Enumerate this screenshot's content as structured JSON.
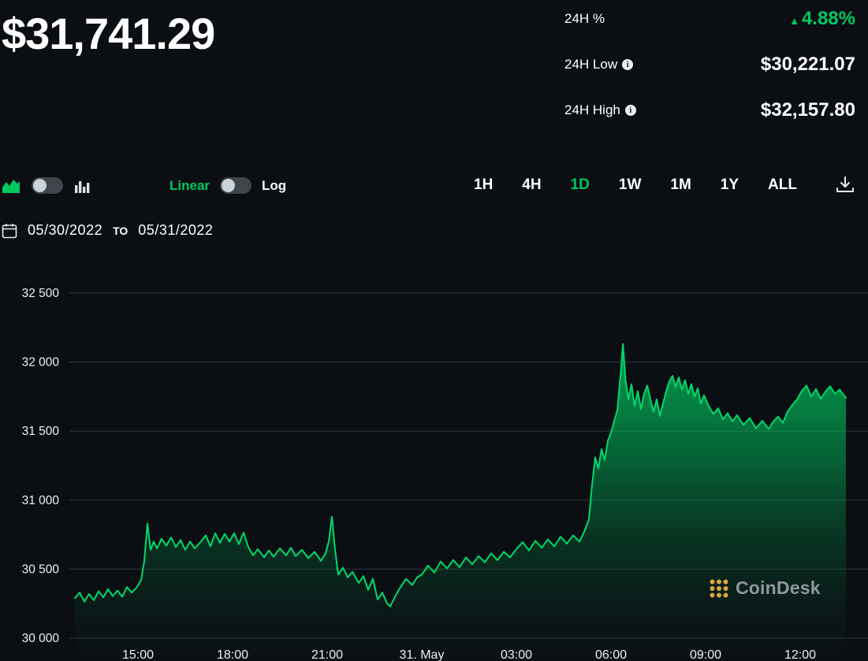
{
  "colors": {
    "background": "#0B0F14",
    "accent_green": "#00C85F",
    "line_green": "#00D96A",
    "gridline": "#32373d",
    "watermark_gold": "#DFA83D",
    "watermark_gray": "#8f969c"
  },
  "icons": {
    "up_triangle": "▲",
    "info": "i",
    "area_chart": "area-chart-icon",
    "bar_chart": "bar-chart-icon",
    "download": "download-icon",
    "calendar": "calendar-icon"
  },
  "header": {
    "price": "$31,741.29",
    "stats": [
      {
        "label": "24H %",
        "value": "4.88%",
        "direction": "up"
      },
      {
        "label": "24H Low",
        "value": "$30,221.07",
        "has_info": true
      },
      {
        "label": "24H High",
        "value": "$32,157.80",
        "has_info": true
      }
    ]
  },
  "scale": {
    "linear": "Linear",
    "log": "Log",
    "selected": "Linear"
  },
  "ranges": {
    "options": [
      "1H",
      "4H",
      "1D",
      "1W",
      "1M",
      "1Y",
      "ALL"
    ],
    "selected": "1D"
  },
  "date_range": {
    "from": "05/30/2022",
    "separator": "TO",
    "to": "05/31/2022"
  },
  "watermark": {
    "text": "CoinDesk"
  },
  "chart_data": {
    "type": "area",
    "title": "",
    "xlabel": "",
    "ylabel": "",
    "legend": "none",
    "grid": "horizontal",
    "t_unit": "hours since 2022-05-30 00:00 (dates from visible date range)",
    "x_range_hours": [
      13.0,
      38.15
    ],
    "y_range": [
      30000,
      32500
    ],
    "x_ticks": [
      {
        "t": 15,
        "label": "15:00"
      },
      {
        "t": 18,
        "label": "18:00"
      },
      {
        "t": 21,
        "label": "21:00"
      },
      {
        "t": 24,
        "label": "31. May"
      },
      {
        "t": 27,
        "label": "03:00"
      },
      {
        "t": 30,
        "label": "06:00"
      },
      {
        "t": 33,
        "label": "09:00"
      },
      {
        "t": 36,
        "label": "12:00"
      }
    ],
    "y_ticks": [
      {
        "v": 32500,
        "label": "32 500"
      },
      {
        "v": 32000,
        "label": "32 000"
      },
      {
        "v": 31500,
        "label": "31 500"
      },
      {
        "v": 31000,
        "label": "31 000"
      },
      {
        "v": 30500,
        "label": "30 500"
      },
      {
        "v": 30000,
        "label": "30 000"
      }
    ],
    "points": [
      [
        13.0,
        30290
      ],
      [
        13.15,
        30330
      ],
      [
        13.3,
        30265
      ],
      [
        13.45,
        30320
      ],
      [
        13.6,
        30275
      ],
      [
        13.75,
        30340
      ],
      [
        13.9,
        30295
      ],
      [
        14.05,
        30355
      ],
      [
        14.2,
        30305
      ],
      [
        14.35,
        30345
      ],
      [
        14.5,
        30300
      ],
      [
        14.65,
        30370
      ],
      [
        14.8,
        30330
      ],
      [
        14.95,
        30365
      ],
      [
        15.1,
        30420
      ],
      [
        15.2,
        30560
      ],
      [
        15.3,
        30830
      ],
      [
        15.4,
        30640
      ],
      [
        15.5,
        30700
      ],
      [
        15.6,
        30650
      ],
      [
        15.75,
        30720
      ],
      [
        15.9,
        30670
      ],
      [
        16.05,
        30730
      ],
      [
        16.2,
        30660
      ],
      [
        16.35,
        30710
      ],
      [
        16.5,
        30640
      ],
      [
        16.65,
        30700
      ],
      [
        16.8,
        30650
      ],
      [
        17.0,
        30700
      ],
      [
        17.15,
        30745
      ],
      [
        17.3,
        30665
      ],
      [
        17.45,
        30760
      ],
      [
        17.6,
        30690
      ],
      [
        17.75,
        30755
      ],
      [
        17.9,
        30700
      ],
      [
        18.05,
        30760
      ],
      [
        18.2,
        30680
      ],
      [
        18.35,
        30765
      ],
      [
        18.5,
        30660
      ],
      [
        18.65,
        30600
      ],
      [
        18.8,
        30645
      ],
      [
        19.0,
        30585
      ],
      [
        19.15,
        30635
      ],
      [
        19.3,
        30590
      ],
      [
        19.5,
        30650
      ],
      [
        19.7,
        30600
      ],
      [
        19.85,
        30655
      ],
      [
        20.0,
        30595
      ],
      [
        20.2,
        30640
      ],
      [
        20.4,
        30580
      ],
      [
        20.6,
        30625
      ],
      [
        20.8,
        30560
      ],
      [
        20.95,
        30615
      ],
      [
        21.05,
        30700
      ],
      [
        21.15,
        30880
      ],
      [
        21.25,
        30640
      ],
      [
        21.35,
        30460
      ],
      [
        21.5,
        30510
      ],
      [
        21.65,
        30440
      ],
      [
        21.8,
        30480
      ],
      [
        22.0,
        30400
      ],
      [
        22.15,
        30450
      ],
      [
        22.3,
        30350
      ],
      [
        22.45,
        30430
      ],
      [
        22.6,
        30280
      ],
      [
        22.75,
        30330
      ],
      [
        22.9,
        30250
      ],
      [
        23.0,
        30230
      ],
      [
        23.15,
        30300
      ],
      [
        23.3,
        30360
      ],
      [
        23.5,
        30430
      ],
      [
        23.7,
        30385
      ],
      [
        23.85,
        30440
      ],
      [
        24.0,
        30460
      ],
      [
        24.2,
        30525
      ],
      [
        24.4,
        30475
      ],
      [
        24.6,
        30555
      ],
      [
        24.8,
        30505
      ],
      [
        25.0,
        30565
      ],
      [
        25.2,
        30515
      ],
      [
        25.4,
        30585
      ],
      [
        25.6,
        30535
      ],
      [
        25.8,
        30595
      ],
      [
        26.0,
        30550
      ],
      [
        26.2,
        30615
      ],
      [
        26.4,
        30565
      ],
      [
        26.6,
        30625
      ],
      [
        26.8,
        30585
      ],
      [
        27.0,
        30645
      ],
      [
        27.2,
        30695
      ],
      [
        27.4,
        30635
      ],
      [
        27.6,
        30705
      ],
      [
        27.8,
        30655
      ],
      [
        28.0,
        30715
      ],
      [
        28.2,
        30665
      ],
      [
        28.4,
        30735
      ],
      [
        28.6,
        30685
      ],
      [
        28.8,
        30745
      ],
      [
        29.0,
        30700
      ],
      [
        29.15,
        30770
      ],
      [
        29.3,
        30860
      ],
      [
        29.4,
        31110
      ],
      [
        29.5,
        31310
      ],
      [
        29.6,
        31230
      ],
      [
        29.7,
        31370
      ],
      [
        29.8,
        31290
      ],
      [
        29.9,
        31430
      ],
      [
        30.0,
        31490
      ],
      [
        30.1,
        31570
      ],
      [
        30.2,
        31650
      ],
      [
        30.3,
        31900
      ],
      [
        30.38,
        32130
      ],
      [
        30.46,
        31870
      ],
      [
        30.55,
        31730
      ],
      [
        30.65,
        31840
      ],
      [
        30.75,
        31680
      ],
      [
        30.85,
        31790
      ],
      [
        30.95,
        31660
      ],
      [
        31.05,
        31770
      ],
      [
        31.15,
        31830
      ],
      [
        31.25,
        31730
      ],
      [
        31.35,
        31640
      ],
      [
        31.45,
        31730
      ],
      [
        31.55,
        31610
      ],
      [
        31.65,
        31700
      ],
      [
        31.75,
        31790
      ],
      [
        31.85,
        31860
      ],
      [
        31.95,
        31900
      ],
      [
        32.05,
        31820
      ],
      [
        32.15,
        31890
      ],
      [
        32.25,
        31800
      ],
      [
        32.35,
        31870
      ],
      [
        32.45,
        31770
      ],
      [
        32.55,
        31840
      ],
      [
        32.65,
        31750
      ],
      [
        32.75,
        31810
      ],
      [
        32.85,
        31700
      ],
      [
        32.95,
        31760
      ],
      [
        33.1,
        31680
      ],
      [
        33.25,
        31625
      ],
      [
        33.4,
        31665
      ],
      [
        33.55,
        31585
      ],
      [
        33.7,
        31630
      ],
      [
        33.85,
        31570
      ],
      [
        34.0,
        31615
      ],
      [
        34.2,
        31545
      ],
      [
        34.4,
        31595
      ],
      [
        34.6,
        31520
      ],
      [
        34.8,
        31575
      ],
      [
        35.0,
        31515
      ],
      [
        35.15,
        31570
      ],
      [
        35.3,
        31605
      ],
      [
        35.45,
        31560
      ],
      [
        35.6,
        31640
      ],
      [
        35.75,
        31690
      ],
      [
        35.9,
        31730
      ],
      [
        36.05,
        31790
      ],
      [
        36.2,
        31830
      ],
      [
        36.35,
        31750
      ],
      [
        36.5,
        31805
      ],
      [
        36.65,
        31735
      ],
      [
        36.8,
        31785
      ],
      [
        36.95,
        31825
      ],
      [
        37.1,
        31770
      ],
      [
        37.25,
        31800
      ],
      [
        37.45,
        31741
      ]
    ]
  }
}
